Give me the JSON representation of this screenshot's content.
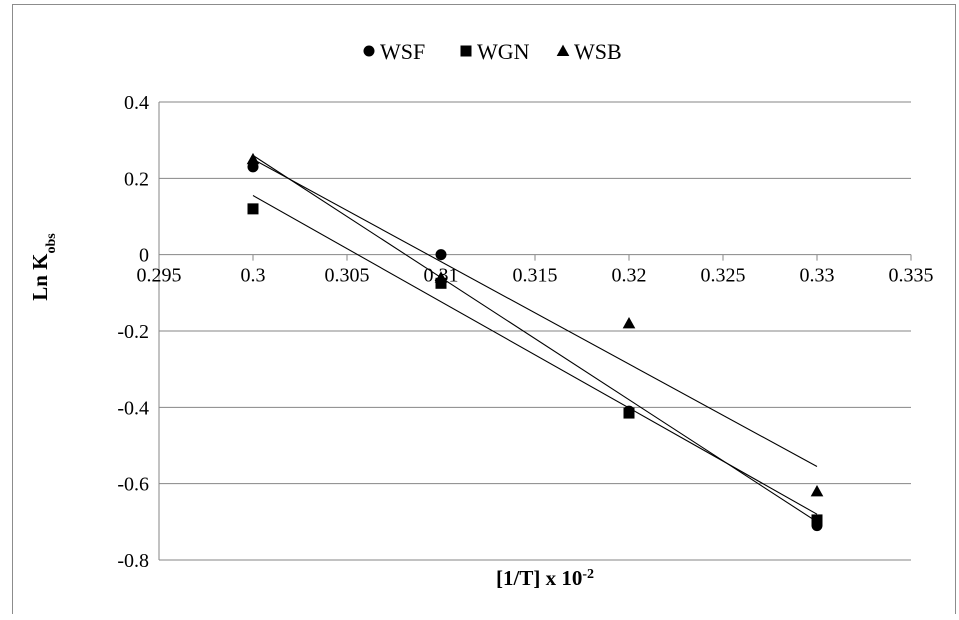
{
  "chart_data": {
    "type": "scatter",
    "title": "",
    "xlabel": "[1/T] x 10",
    "xlabel_superscript": "-2",
    "ylabel": "Ln K",
    "ylabel_subscript": "obs",
    "xlim": [
      0.295,
      0.335
    ],
    "ylim": [
      -0.8,
      0.4
    ],
    "x_ticks": [
      "0.295",
      "0.3",
      "0.305",
      "0.31",
      "0.315",
      "0.32",
      "0.325",
      "0.33",
      "0.335"
    ],
    "y_ticks": [
      "0.4",
      "0.2",
      "0",
      "-0.2",
      "-0.4",
      "-0.6",
      "-0.8"
    ],
    "grid": "horizontal",
    "legend_position": "top",
    "trendlines": "linear",
    "series": [
      {
        "name": "WSF",
        "marker": "circle",
        "x": [
          0.3,
          0.31,
          0.32,
          0.33
        ],
        "y": [
          0.23,
          0.0,
          -0.41,
          -0.71
        ],
        "trend": [
          [
            0.3,
            0.26
          ],
          [
            0.33,
            -0.7
          ]
        ]
      },
      {
        "name": "WGN",
        "marker": "square",
        "x": [
          0.3,
          0.31,
          0.32,
          0.33
        ],
        "y": [
          0.12,
          -0.075,
          -0.415,
          -0.695
        ],
        "trend": [
          [
            0.3,
            0.155
          ],
          [
            0.33,
            -0.68
          ]
        ]
      },
      {
        "name": "WSB",
        "marker": "triangle",
        "x": [
          0.3,
          0.31,
          0.32,
          0.33
        ],
        "y": [
          0.25,
          -0.06,
          -0.18,
          -0.62
        ],
        "trend": [
          [
            0.3,
            0.25
          ],
          [
            0.33,
            -0.555
          ]
        ]
      }
    ]
  }
}
